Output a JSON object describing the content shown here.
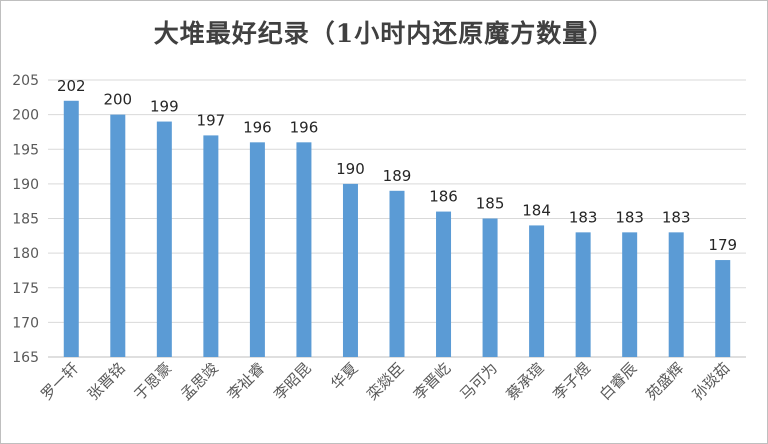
{
  "chart_data": {
    "type": "bar",
    "title": "大堆最好纪录（1小时内还原魔方数量）",
    "categories": [
      "罗一轩",
      "张晋铭",
      "于恩豪",
      "孟思竣",
      "李祉睿",
      "李昭昆",
      "华夏",
      "栾燚臣",
      "李晋屹",
      "马可为",
      "蔡承瑄",
      "李子煜",
      "白睿辰",
      "苑盛辉",
      "孙琰茹"
    ],
    "values": [
      202,
      200,
      199,
      197,
      196,
      196,
      190,
      189,
      186,
      185,
      184,
      183,
      183,
      183,
      179
    ],
    "ylim": [
      165,
      205
    ],
    "yticks": [
      165,
      170,
      175,
      180,
      185,
      190,
      195,
      200,
      205
    ],
    "grid": true,
    "bar_color": "#5b9bd5"
  }
}
